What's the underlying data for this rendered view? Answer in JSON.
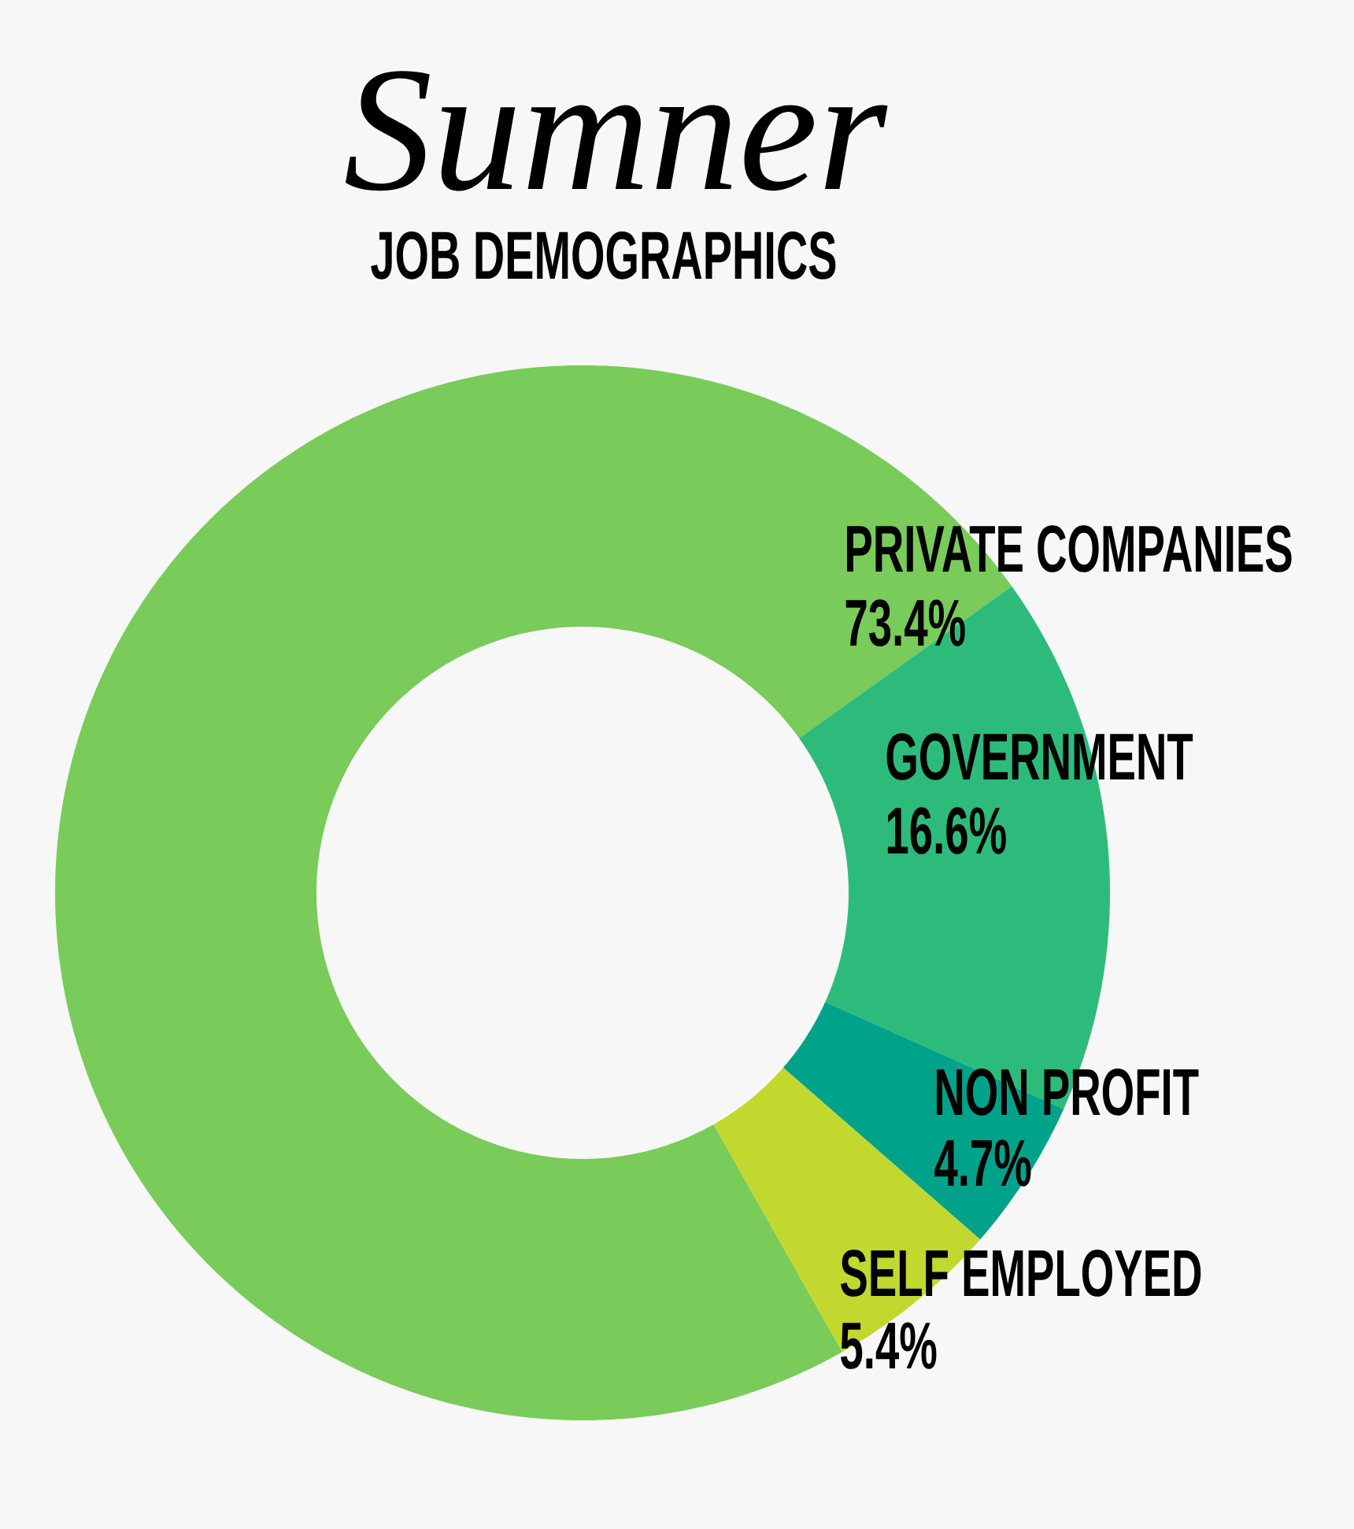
{
  "chart_data": {
    "type": "donut",
    "title": "Sumner",
    "subtitle": "JOB DEMOGRAPHICS",
    "categories": [
      "PRIVATE COMPANIES",
      "GOVERNMENT",
      "NON PROFIT",
      "SELF EMPLOYED"
    ],
    "values": [
      73.4,
      16.6,
      4.7,
      5.4
    ],
    "colors": [
      "#79cb5a",
      "#2dbb7b",
      "#00a28a",
      "#c2d82e"
    ],
    "value_labels": [
      "73.4%",
      "16.6%",
      "4.7%",
      "5.4%"
    ]
  }
}
